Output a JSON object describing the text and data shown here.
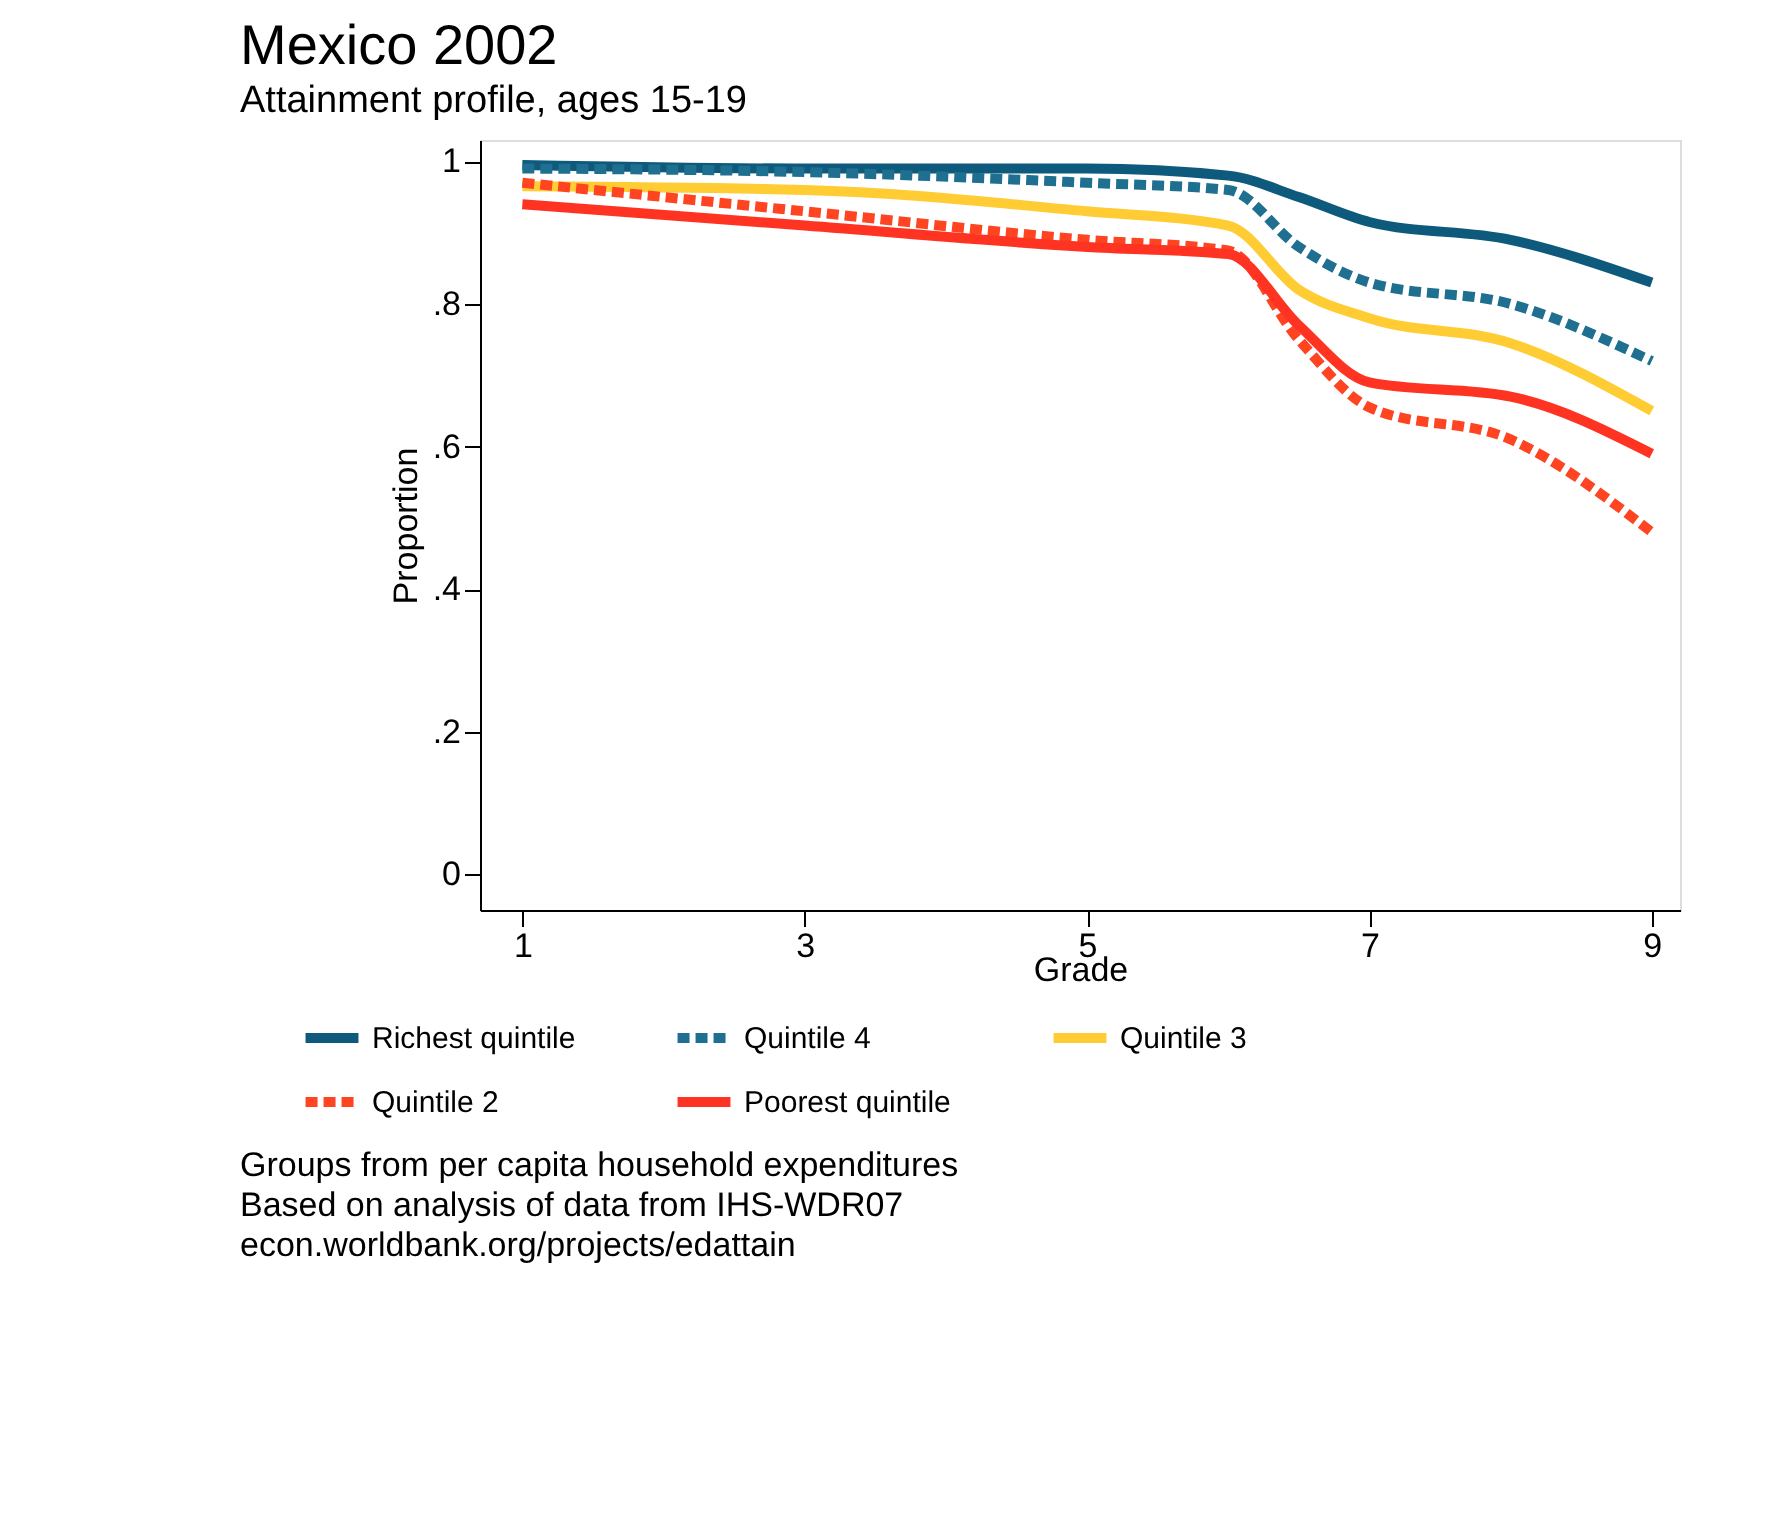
{
  "chart_data": {
    "type": "line",
    "title": "Mexico 2002",
    "subtitle": "Attainment profile, ages 15-19",
    "xlabel": "Grade",
    "ylabel": "Proportion",
    "xlim": [
      0.7,
      9.2
    ],
    "xticks": [
      1,
      3,
      5,
      7,
      9
    ],
    "ylim": [
      -0.05,
      1.03
    ],
    "yticks": [
      0,
      {
        "value": 0.2,
        "label": ".2"
      },
      {
        "value": 0.4,
        "label": ".4"
      },
      {
        "value": 0.6,
        "label": ".6"
      },
      {
        "value": 0.8,
        "label": ".8"
      },
      1
    ],
    "x": [
      1,
      3,
      5,
      6,
      6.5,
      7,
      8,
      9
    ],
    "grid": false,
    "legend": "bottom",
    "marker": "none",
    "series": [
      {
        "name": "Richest quintile",
        "color": "#0e5a7c",
        "line_style": "solid",
        "values": [
          0.995,
          0.99,
          0.99,
          0.98,
          0.95,
          0.915,
          0.89,
          0.83
        ]
      },
      {
        "name": "Quintile 4",
        "color": "#1f6f90",
        "line_style": "dashed",
        "values": [
          0.99,
          0.985,
          0.97,
          0.96,
          0.88,
          0.83,
          0.8,
          0.72
        ]
      },
      {
        "name": "Quintile 3",
        "color": "#ffcc33",
        "line_style": "solid",
        "values": [
          0.965,
          0.96,
          0.93,
          0.91,
          0.82,
          0.78,
          0.745,
          0.65
        ]
      },
      {
        "name": "Quintile 2",
        "color": "#ff4422",
        "line_style": "dashed",
        "values": [
          0.97,
          0.93,
          0.89,
          0.875,
          0.75,
          0.655,
          0.61,
          0.48
        ]
      },
      {
        "name": "Poorest quintile",
        "color": "#ff3322",
        "line_style": "solid",
        "values": [
          0.94,
          0.91,
          0.88,
          0.87,
          0.77,
          0.69,
          0.67,
          0.59
        ]
      }
    ],
    "annotations": [
      "Groups from per capita household expenditures",
      "Based on analysis of data from IHS-WDR07",
      "econ.worldbank.org/projects/edattain"
    ]
  }
}
